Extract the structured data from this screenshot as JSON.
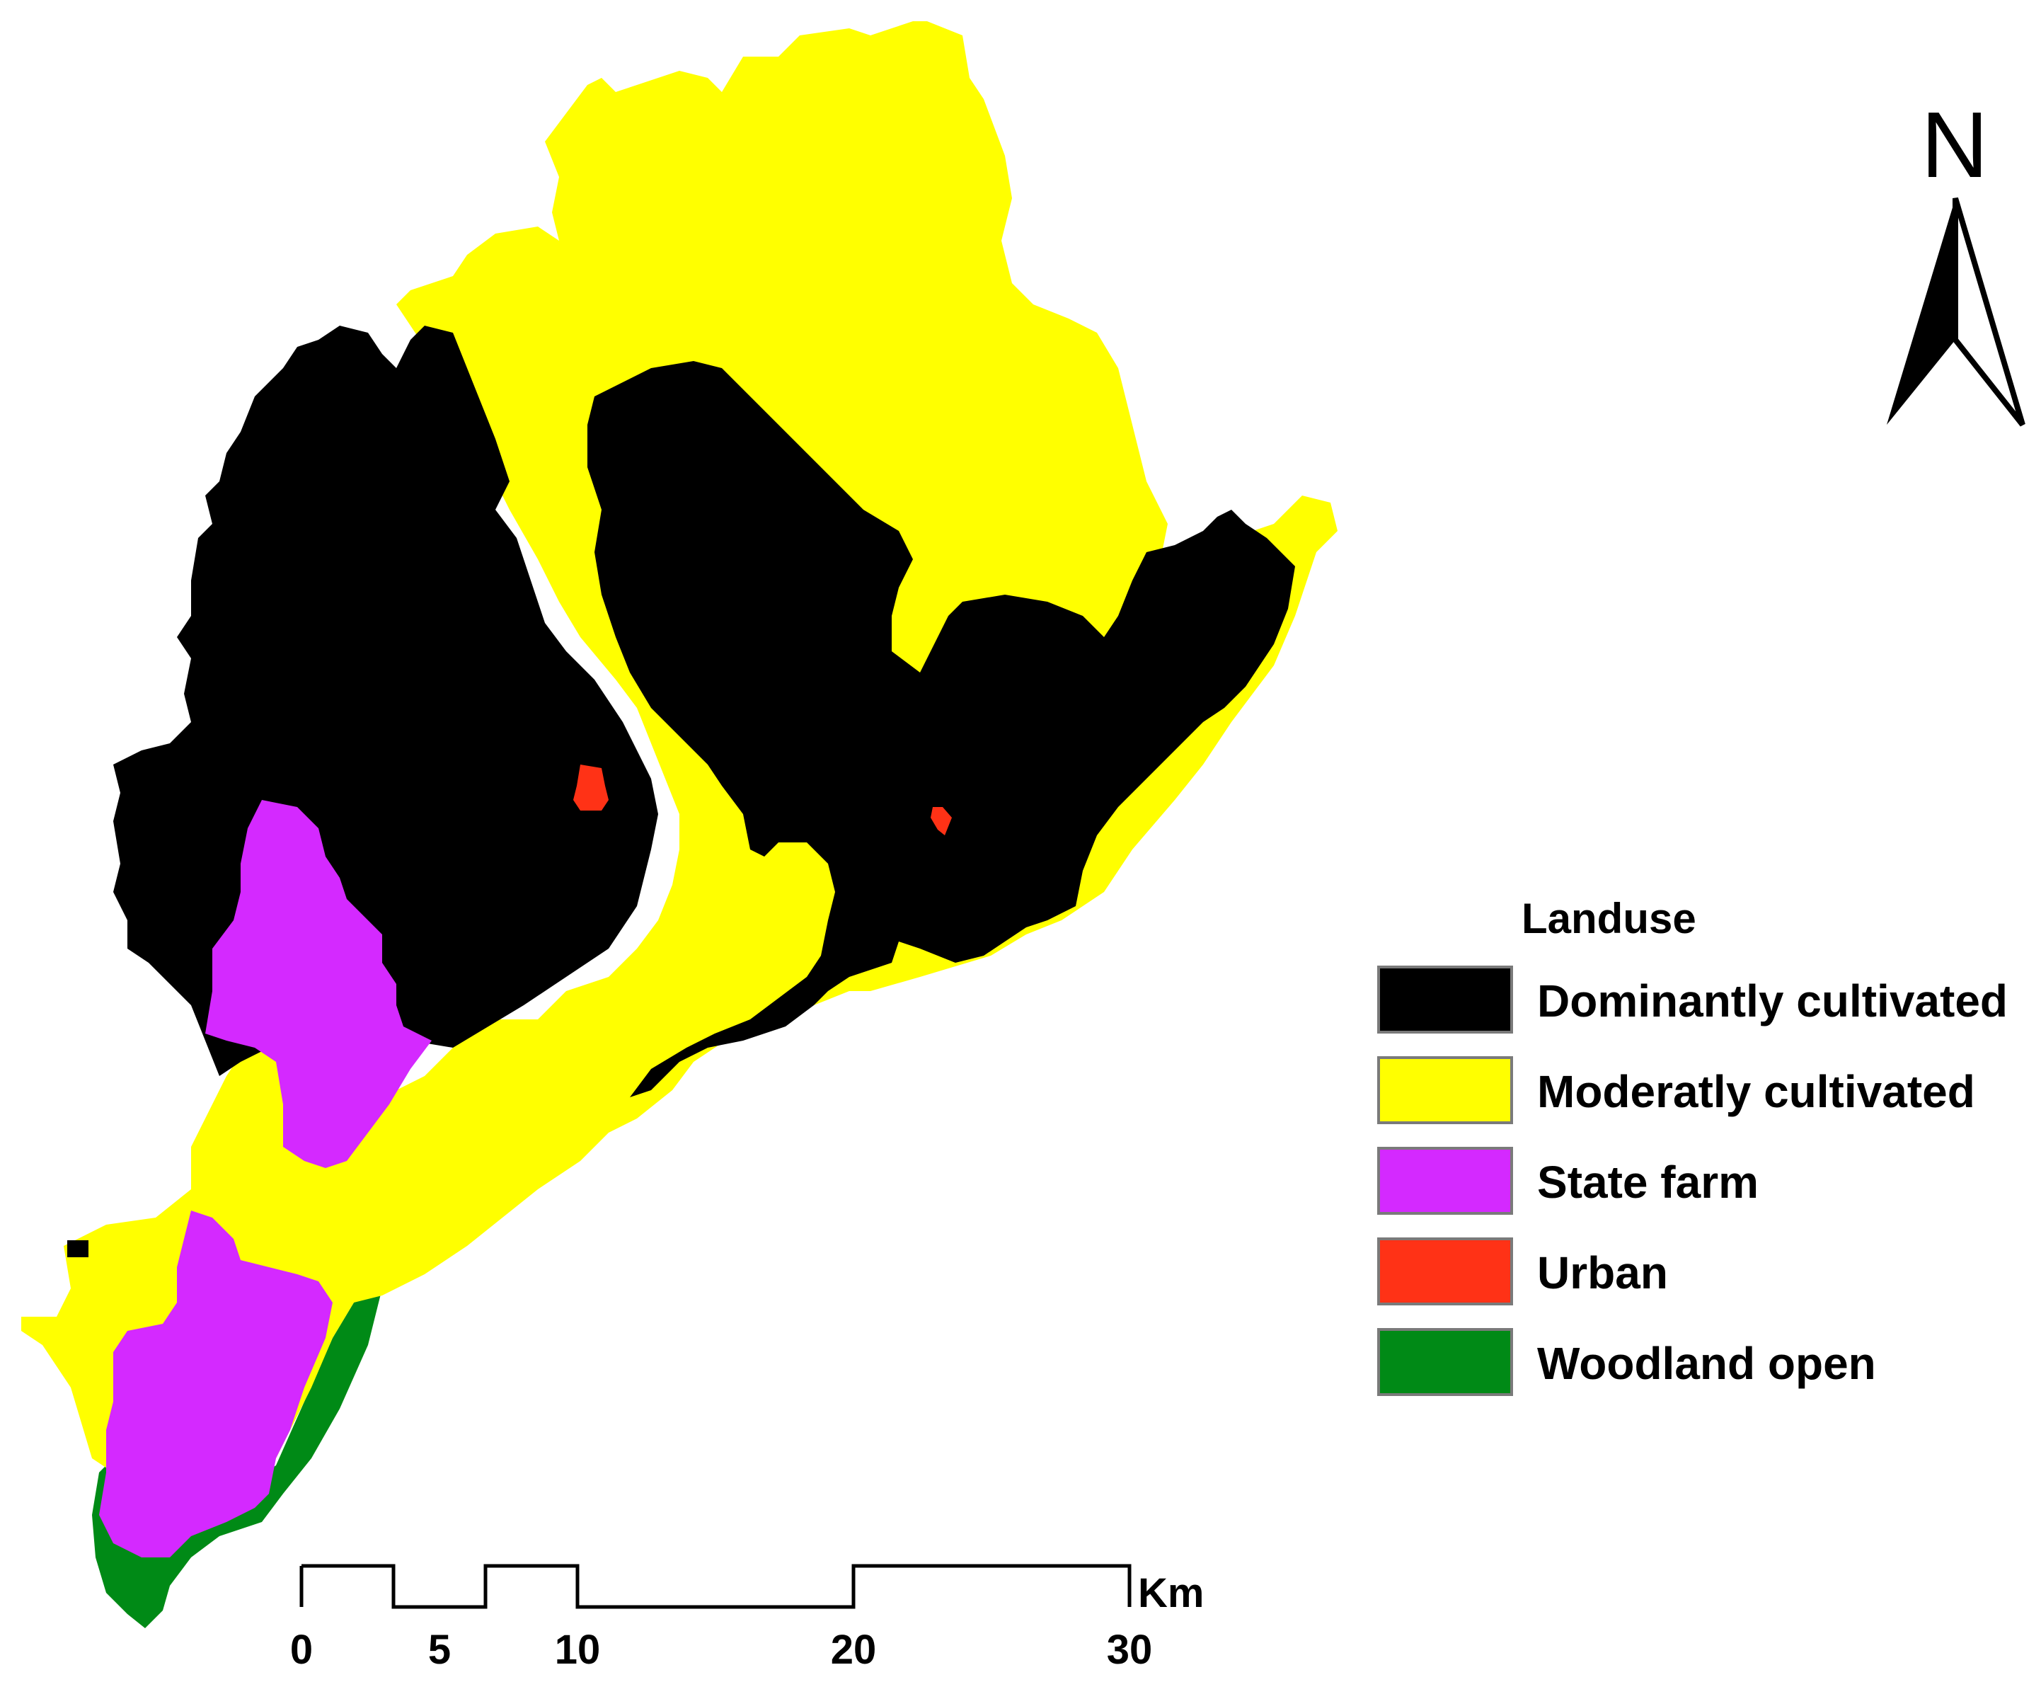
{
  "legend": {
    "title": "Landuse",
    "items": [
      {
        "label": "Dominantly cultivated",
        "color": "#000000"
      },
      {
        "label": "Moderatly cultivated",
        "color": "#ffff00"
      },
      {
        "label": "State farm",
        "color": "#d429ff"
      },
      {
        "label": "Urban",
        "color": "#ff3216"
      },
      {
        "label": "Woodland open",
        "color": "#008a16"
      }
    ]
  },
  "north_arrow": {
    "label": "N"
  },
  "scale_bar": {
    "unit": "Km",
    "ticks": [
      "0",
      "5",
      "10",
      "20",
      "30"
    ]
  }
}
